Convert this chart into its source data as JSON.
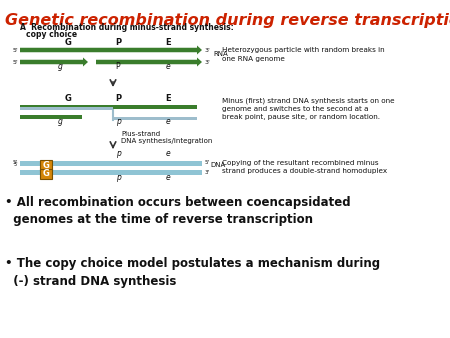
{
  "title": "Genetic recombination during reverse transcription",
  "title_color": "#cc2200",
  "title_fontsize": 11.5,
  "bg_color": "#ffffff",
  "green_color": "#3a7d2c",
  "blue_color": "#8fc4d4",
  "orange_color": "#d4870a",
  "text_color": "#111111",
  "right_text_1": "Heterozygous particle with random breaks in\none RNA genome",
  "right_text_2": "Minus (first) strand DNA synthesis starts on one\ngenome and switches to the second at a\nbreak point, pause site, or random location.",
  "right_text_3": "Copying of the resultant recombined minus\nstrand produces a double-strand homoduplex",
  "bullet_text_1": "• All recombination occurs between coencapsidated\n  genomes at the time of reverse transcription",
  "bullet_text_2": "• The copy choice model postulates a mechanism during\n  (-) strand DNA synthesis"
}
